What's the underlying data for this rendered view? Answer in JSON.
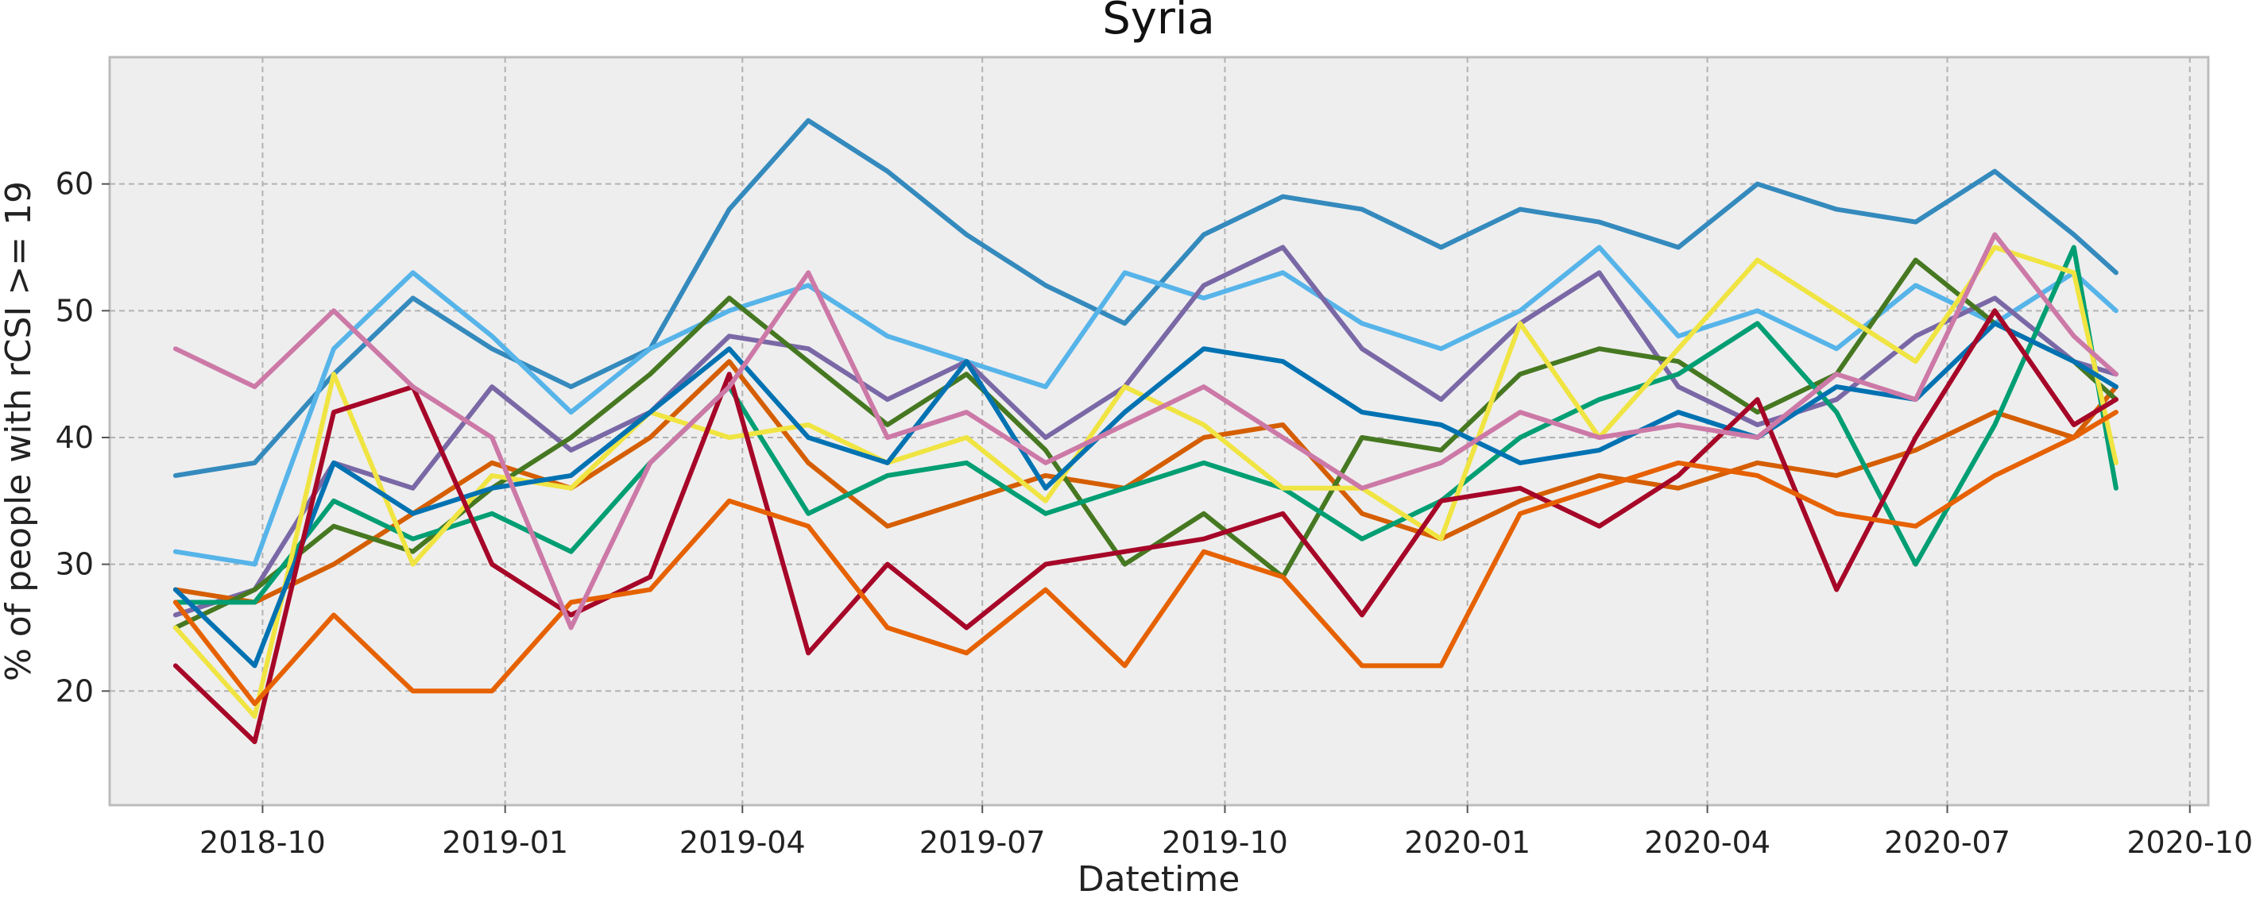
{
  "chart_data": {
    "type": "line",
    "title": "Syria",
    "xlabel": "Datetime",
    "ylabel": "% of people with rCSI >= 19",
    "xlim": [
      "2018-08-04",
      "2020-10-08"
    ],
    "ylim": [
      11,
      70
    ],
    "grid": true,
    "legend": "none",
    "x_tick_labels": [
      "2018-10",
      "2019-01",
      "2019-04",
      "2019-07",
      "2019-10",
      "2020-01",
      "2020-04",
      "2020-07",
      "2020-10"
    ],
    "x_ticks": [
      "2018-10-01",
      "2019-01-01",
      "2019-04-01",
      "2019-07-01",
      "2019-10-01",
      "2020-01-01",
      "2020-04-01",
      "2020-07-01",
      "2020-10-01"
    ],
    "y_ticks": [
      20,
      30,
      40,
      50,
      60
    ],
    "x": [
      "2018-08-29",
      "2018-09-28",
      "2018-10-28",
      "2018-11-27",
      "2018-12-27",
      "2019-01-26",
      "2019-02-25",
      "2019-03-27",
      "2019-04-26",
      "2019-05-26",
      "2019-06-25",
      "2019-07-25",
      "2019-08-24",
      "2019-09-23",
      "2019-10-23",
      "2019-11-22",
      "2019-12-22",
      "2020-01-21",
      "2020-02-20",
      "2020-03-21",
      "2020-04-20",
      "2020-05-20",
      "2020-06-19",
      "2020-07-19",
      "2020-08-18",
      "2020-09-03"
    ],
    "series": [
      {
        "values": [
          37,
          38,
          45,
          51,
          47,
          44,
          47,
          58,
          65,
          61,
          56,
          52,
          49,
          56,
          59,
          58,
          55,
          58,
          57,
          55,
          60,
          58,
          57,
          61,
          56,
          53
        ],
        "color": "#348ABD"
      },
      {
        "values": [
          31,
          30,
          47,
          53,
          48,
          42,
          47,
          50,
          52,
          48,
          46,
          44,
          53,
          51,
          53,
          49,
          47,
          50,
          55,
          48,
          50,
          47,
          52,
          49,
          53,
          50
        ],
        "color": "#56B4E9"
      },
      {
        "values": [
          26,
          28,
          38,
          36,
          44,
          39,
          42,
          48,
          47,
          43,
          46,
          40,
          44,
          52,
          55,
          47,
          43,
          49,
          53,
          44,
          41,
          43,
          48,
          51,
          46,
          45
        ],
        "color": "#7A68A6"
      },
      {
        "values": [
          28,
          27,
          30,
          34,
          38,
          36,
          40,
          46,
          38,
          33,
          35,
          37,
          36,
          40,
          41,
          34,
          32,
          35,
          37,
          36,
          38,
          37,
          39,
          42,
          40,
          44
        ],
        "color": "#D55E00"
      },
      {
        "values": [
          25,
          28,
          33,
          31,
          36,
          40,
          45,
          51,
          46,
          41,
          45,
          39,
          30,
          34,
          29,
          40,
          39,
          45,
          47,
          46,
          42,
          45,
          54,
          49,
          46,
          43
        ],
        "color": "#467821"
      },
      {
        "values": [
          27,
          27,
          35,
          32,
          34,
          31,
          38,
          44,
          34,
          37,
          38,
          34,
          36,
          38,
          36,
          32,
          35,
          40,
          43,
          45,
          49,
          42,
          30,
          41,
          55,
          36
        ],
        "color": "#009E73"
      },
      {
        "values": [
          25,
          18,
          45,
          30,
          37,
          36,
          42,
          40,
          41,
          38,
          40,
          35,
          44,
          41,
          36,
          36,
          32,
          49,
          40,
          47,
          54,
          50,
          46,
          55,
          53,
          38
        ],
        "color": "#F0E442"
      },
      {
        "values": [
          28,
          22,
          38,
          34,
          36,
          37,
          42,
          47,
          40,
          38,
          46,
          36,
          42,
          47,
          46,
          42,
          41,
          38,
          39,
          42,
          40,
          44,
          43,
          49,
          46,
          44
        ],
        "color": "#0072B2"
      },
      {
        "values": [
          22,
          16,
          42,
          44,
          30,
          26,
          29,
          45,
          23,
          30,
          25,
          30,
          31,
          32,
          34,
          26,
          35,
          36,
          33,
          37,
          43,
          28,
          40,
          50,
          41,
          43
        ],
        "color": "#A60628"
      },
      {
        "values": [
          27,
          19,
          26,
          20,
          20,
          27,
          28,
          35,
          33,
          25,
          23,
          28,
          22,
          31,
          29,
          22,
          22,
          34,
          36,
          38,
          37,
          34,
          33,
          37,
          40,
          42
        ],
        "color": "#E66100"
      },
      {
        "values": [
          47,
          44,
          50,
          44,
          40,
          25,
          38,
          44,
          53,
          40,
          42,
          38,
          41,
          44,
          40,
          36,
          38,
          42,
          40,
          41,
          40,
          45,
          43,
          56,
          48,
          45
        ],
        "color": "#CC79A7"
      }
    ],
    "styles": {
      "background": "#EEEEEE",
      "grid_color": "#B2B2B2",
      "frame_color": "#BCBCBC"
    }
  }
}
